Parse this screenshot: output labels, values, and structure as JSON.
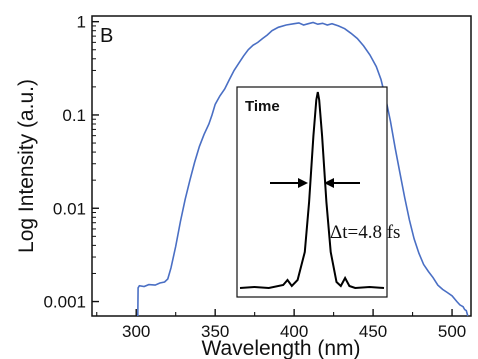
{
  "chart_data": [
    {
      "type": "line",
      "panel_label": "B",
      "xlabel": "Wavelength (nm)",
      "ylabel": "Log Intensity (a.u.)",
      "xlim": [
        272,
        512
      ],
      "ylim": [
        0.0007,
        1.15
      ],
      "y_scale": "log",
      "grid": false,
      "x_ticks": [
        300,
        350,
        400,
        450,
        500
      ],
      "x_tick_labels": [
        "300",
        "350",
        "400",
        "450",
        "500"
      ],
      "y_ticks": [
        0.001,
        0.01,
        0.1,
        1
      ],
      "y_tick_labels": [
        "0.001",
        "0.01",
        "0.1",
        "1"
      ],
      "series": [
        {
          "color": "#4a6fc4",
          "points": [
            [
              301.0,
              0.0007
            ],
            [
              301.2,
              0.0014
            ],
            [
              302,
              0.00148
            ],
            [
              305,
              0.00145
            ],
            [
              308,
              0.00152
            ],
            [
              312,
              0.0015
            ],
            [
              315,
              0.00158
            ],
            [
              318,
              0.00162
            ],
            [
              320,
              0.00175
            ],
            [
              322,
              0.0023
            ],
            [
              325,
              0.0039
            ],
            [
              328,
              0.0072
            ],
            [
              331,
              0.0125
            ],
            [
              334,
              0.02
            ],
            [
              337,
              0.031
            ],
            [
              340,
              0.046
            ],
            [
              343,
              0.062
            ],
            [
              346,
              0.08
            ],
            [
              348,
              0.1
            ],
            [
              350,
              0.13
            ],
            [
              353,
              0.16
            ],
            [
              356,
              0.19
            ],
            [
              359,
              0.24
            ],
            [
              362,
              0.3
            ],
            [
              365,
              0.36
            ],
            [
              368,
              0.43
            ],
            [
              371,
              0.5
            ],
            [
              374,
              0.56
            ],
            [
              377,
              0.6
            ],
            [
              380,
              0.66
            ],
            [
              383,
              0.72
            ],
            [
              386,
              0.8
            ],
            [
              390,
              0.87
            ],
            [
              395,
              0.92
            ],
            [
              400,
              0.95
            ],
            [
              403,
              0.97
            ],
            [
              406,
              0.92
            ],
            [
              409,
              0.95
            ],
            [
              412,
              0.98
            ],
            [
              415,
              0.94
            ],
            [
              418,
              0.96
            ],
            [
              421,
              0.92
            ],
            [
              424,
              0.95
            ],
            [
              428,
              0.9
            ],
            [
              432,
              0.84
            ],
            [
              436,
              0.75
            ],
            [
              440,
              0.66
            ],
            [
              444,
              0.55
            ],
            [
              448,
              0.44
            ],
            [
              452,
              0.33
            ],
            [
              455,
              0.24
            ],
            [
              458,
              0.15
            ],
            [
              461,
              0.085
            ],
            [
              464,
              0.044
            ],
            [
              467,
              0.024
            ],
            [
              470,
              0.013
            ],
            [
              473,
              0.0075
            ],
            [
              476,
              0.0047
            ],
            [
              479,
              0.0033
            ],
            [
              482,
              0.0025
            ],
            [
              485,
              0.0021
            ],
            [
              488,
              0.0018
            ],
            [
              491,
              0.0015
            ],
            [
              494,
              0.00135
            ],
            [
              497,
              0.00125
            ],
            [
              500,
              0.00115
            ],
            [
              503,
              0.001
            ],
            [
              505,
              0.00092
            ],
            [
              507,
              0.00088
            ],
            [
              508,
              0.00082
            ],
            [
              509,
              0.0008
            ],
            [
              510,
              0.0007
            ]
          ]
        }
      ]
    },
    {
      "type": "line",
      "title": "Time",
      "annotation": "Δt=4.8 fs",
      "series": [
        {
          "color": "#000000",
          "points": [
            [
              0,
              0.02
            ],
            [
              10,
              0.025
            ],
            [
              20,
              0.02
            ],
            [
              30,
              0.035
            ],
            [
              33,
              0.06
            ],
            [
              36,
              0.03
            ],
            [
              40,
              0.06
            ],
            [
              45,
              0.2
            ],
            [
              48,
              0.45
            ],
            [
              51,
              0.78
            ],
            [
              53,
              0.96
            ],
            [
              54,
              1.0
            ],
            [
              55,
              0.96
            ],
            [
              57,
              0.78
            ],
            [
              60,
              0.45
            ],
            [
              63,
              0.2
            ],
            [
              67,
              0.05
            ],
            [
              70,
              0.03
            ],
            [
              73,
              0.07
            ],
            [
              76,
              0.03
            ],
            [
              80,
              0.02
            ],
            [
              90,
              0.025
            ],
            [
              100,
              0.02
            ]
          ]
        }
      ]
    }
  ],
  "colors": {
    "spectrum": "#4a6fc4",
    "pulse": "#000000",
    "axes": "#111111"
  }
}
